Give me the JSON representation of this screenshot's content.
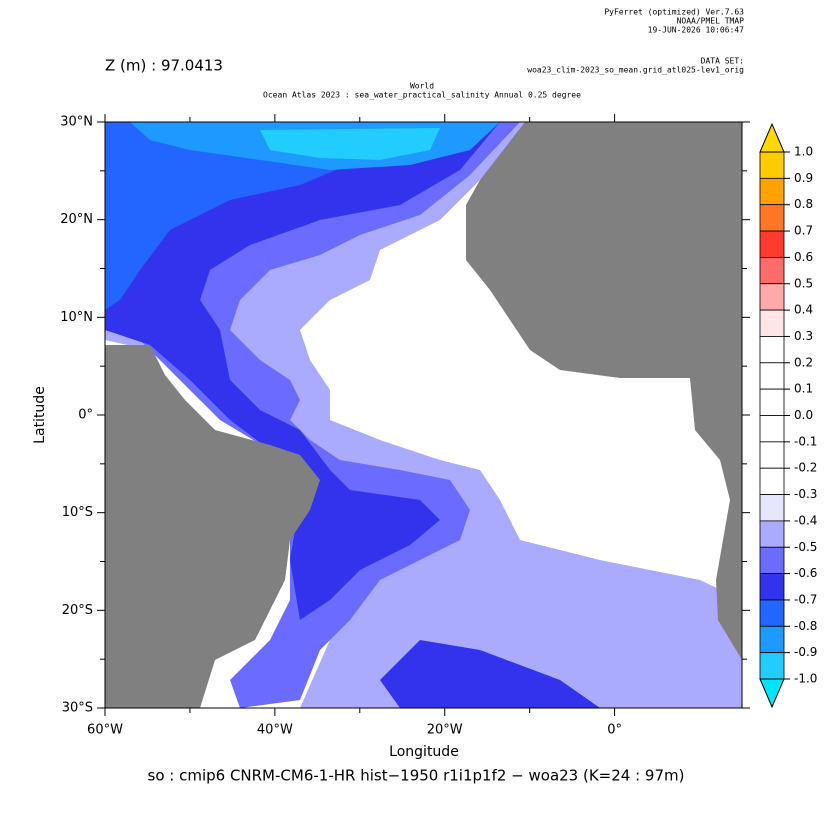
{
  "header": {
    "software": "PyFerret (optimized) Ver.7.63",
    "org": "NOAA/PMEL TMAP",
    "date": "19-JUN-2026 10:06:47",
    "dataset_label": "DATA SET:",
    "dataset": "woa23_clim-2023_so_mean.grid_atl025-lev1_orig"
  },
  "depth_label": "Z (m) : 97.0413",
  "title": [
    "World",
    "Ocean Atlas 2023 : sea_water_practical_salinity Annual  0.25 degree"
  ],
  "map": {
    "xlim": [
      -60,
      15
    ],
    "ylim": [
      -30,
      30
    ],
    "xticks": [
      {
        "value": -60,
        "label": "60°W"
      },
      {
        "value": -40,
        "label": "40°W"
      },
      {
        "value": -20,
        "label": "20°W"
      },
      {
        "value": 0,
        "label": "0°"
      }
    ],
    "yticks": [
      {
        "value": 30,
        "label": "30°N"
      },
      {
        "value": 20,
        "label": "20°N"
      },
      {
        "value": 10,
        "label": "10°N"
      },
      {
        "value": 0,
        "label": "0°"
      },
      {
        "value": -10,
        "label": "10°S"
      },
      {
        "value": -20,
        "label": "20°S"
      },
      {
        "value": -30,
        "label": "30°S"
      }
    ],
    "x_label": "Longitude",
    "y_label": "Latitude"
  },
  "colorbar": {
    "levels": [
      {
        "value": 1,
        "label": "1.0"
      },
      0.9,
      0.8,
      0.7,
      0.6,
      0.5,
      0.4,
      0.3,
      0.2,
      0.1,
      {
        "value": 0,
        "label": "0.0"
      },
      -0.1,
      -0.2,
      -0.3,
      -0.4,
      -0.5,
      -0.6,
      -0.7,
      -0.8,
      -0.9,
      {
        "value": -1,
        "label": "-1.0"
      }
    ],
    "colors": [
      "#ffcc00",
      "#ffa200",
      "#ff7722",
      "#ff3b30",
      "#ff6b6b",
      "#ffaaaa",
      "#ffe6e6",
      "#ffffff",
      "#ffffff",
      "#ffffff",
      "#ffffff",
      "#ffffff",
      "#ffffff",
      "#e6e6ff",
      "#aaaaff",
      "#6b6bff",
      "#3333ee",
      "#2266ff",
      "#1e99ff",
      "#22ccff"
    ],
    "extend_colors": [
      "#ffd800",
      "#00e5ff"
    ]
  },
  "footer": "so : cmip6 CNRM-CM6-1-HR hist−1950 r1i1p1f2 − woa23  (K=24 : 97m)"
}
